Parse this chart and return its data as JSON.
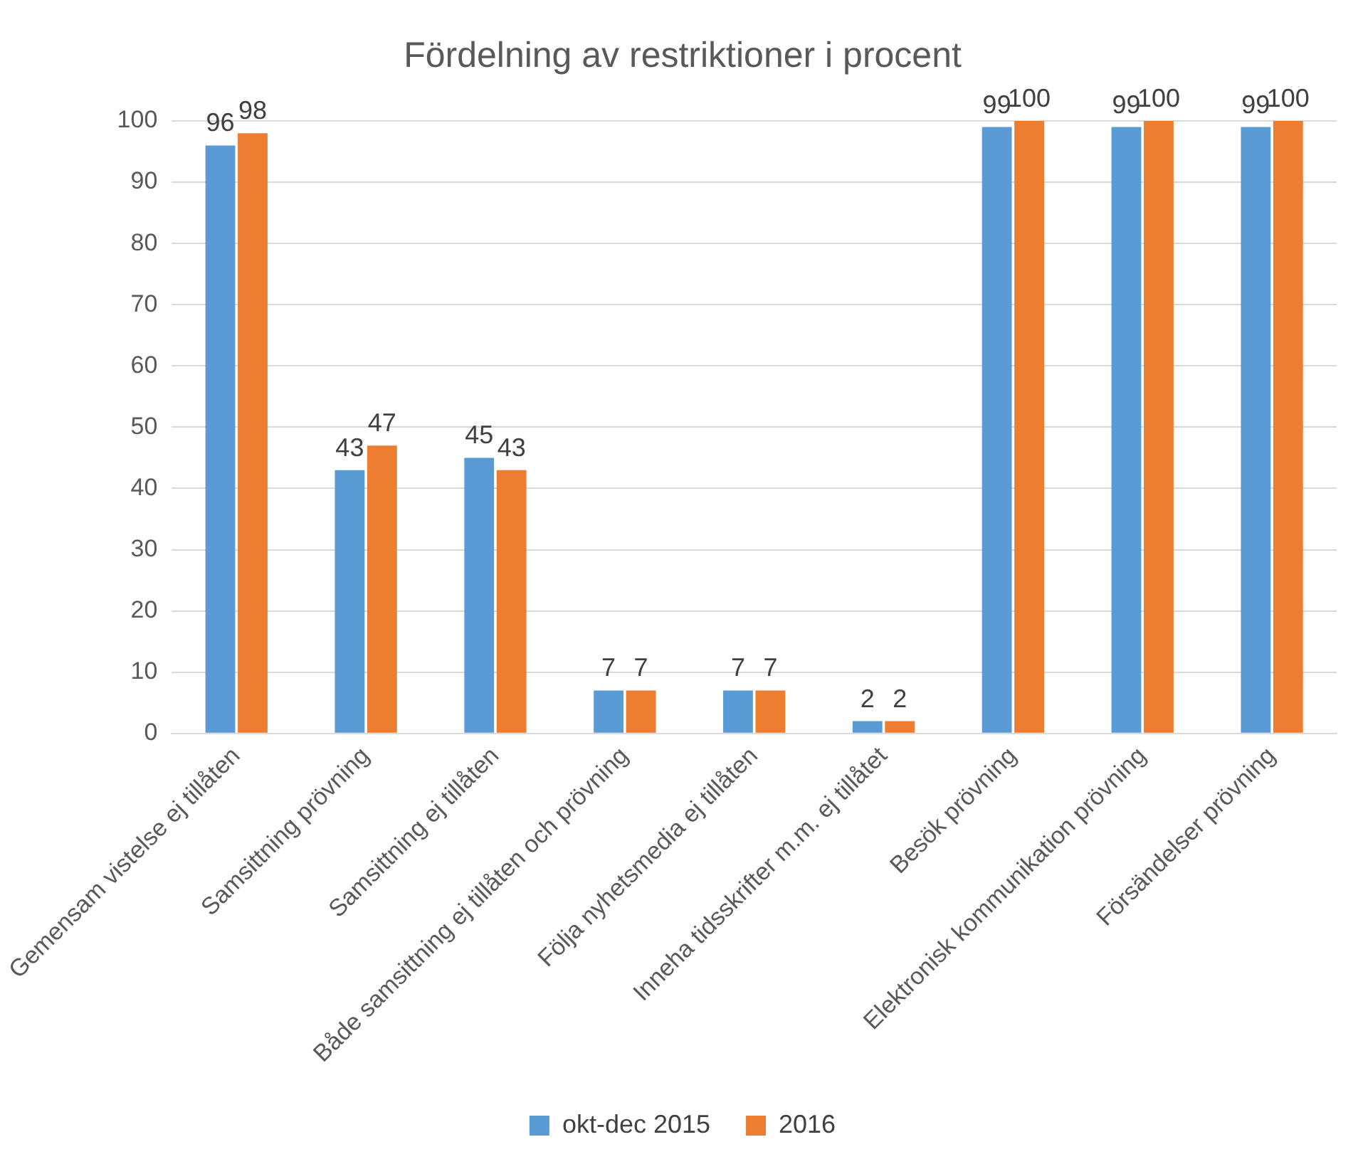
{
  "chart_data": {
    "type": "bar",
    "title": "Fördelning av restriktioner i procent",
    "categories": [
      "Gemensam vistelse ej tillåten",
      "Samsittning prövning",
      "Samsittning ej tillåten",
      "Både samsittning ej tillåten och prövning",
      "Följa nyhetsmedia ej tillåten",
      "Inneha tidsskrifter m.m. ej tillåtet",
      "Besök prövning",
      "Elektronisk kommunikation prövning",
      "Försändelser prövning"
    ],
    "series": [
      {
        "name": "okt-dec 2015",
        "color": "#5b9bd5",
        "values": [
          96,
          43,
          45,
          7,
          7,
          2,
          99,
          99,
          99
        ]
      },
      {
        "name": "2016",
        "color": "#ed7d31",
        "values": [
          98,
          47,
          43,
          7,
          7,
          2,
          100,
          100,
          100
        ]
      }
    ],
    "ylim": [
      0,
      100
    ],
    "yticks": [
      0,
      10,
      20,
      30,
      40,
      50,
      60,
      70,
      80,
      90,
      100
    ],
    "grid": "y",
    "legend": "bottom",
    "data_labels": true
  }
}
